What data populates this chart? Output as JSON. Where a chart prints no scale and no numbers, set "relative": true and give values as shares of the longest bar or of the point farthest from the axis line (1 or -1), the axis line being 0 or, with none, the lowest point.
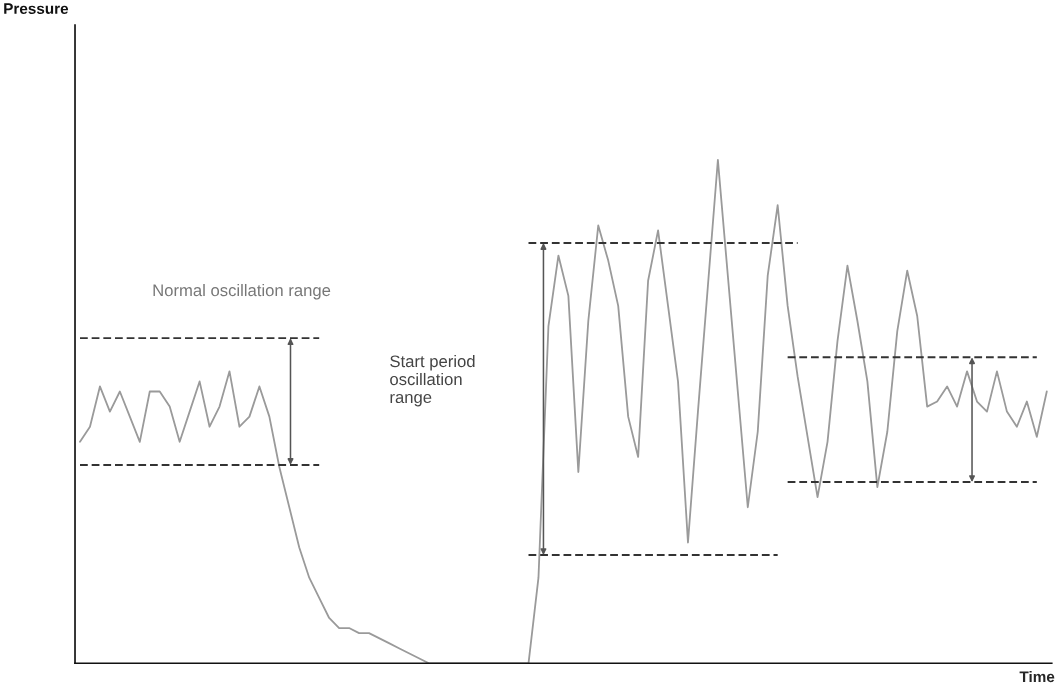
{
  "chart_data": {
    "type": "line",
    "relative": true,
    "xlabel": "Time",
    "annotations": [
      "Pressure",
      "Normal oscillation range",
      "Start period\noscillation\nrange"
    ],
    "categories": [
      null,
      null,
      null,
      null,
      null,
      null,
      null,
      null,
      null,
      null,
      null,
      null,
      null,
      null,
      null,
      null,
      null,
      null,
      null,
      null,
      null,
      null,
      null,
      null,
      null,
      null,
      null,
      null,
      null,
      null,
      null,
      null,
      null,
      null,
      null,
      null,
      null,
      null,
      null,
      null,
      null,
      null,
      null,
      null,
      null,
      null,
      null,
      null,
      null,
      null,
      null,
      null,
      null,
      null,
      null,
      null,
      null,
      null,
      null,
      null,
      null,
      null,
      null,
      null,
      null,
      null,
      null,
      null,
      null,
      null,
      null,
      null,
      null,
      null,
      null,
      null,
      null,
      null,
      null,
      null,
      null,
      null,
      null,
      null,
      null,
      null,
      null,
      null,
      null,
      null,
      null,
      null,
      null,
      null,
      null,
      null,
      null,
      null
    ],
    "series": [
      {
        "color": "#9a9a9a",
        "line_style": "solid",
        "values": [
          0.44,
          0.47,
          0.55,
          0.5,
          0.54,
          0.49,
          0.44,
          0.54,
          0.54,
          0.51,
          0.44,
          0.5,
          0.56,
          0.47,
          0.51,
          0.58,
          0.47,
          0.49,
          0.55,
          0.49,
          0.39,
          0.31,
          0.23,
          0.17,
          0.13,
          0.09,
          0.07,
          0.07,
          0.06,
          0.06,
          0.05,
          0.04,
          0.03,
          0.02,
          0.01,
          0,
          0,
          0,
          0,
          0,
          0,
          0,
          0,
          0,
          0,
          0,
          0.17,
          0.67,
          0.81,
          0.73,
          0.38,
          0.68,
          0.87,
          0.8,
          0.71,
          0.49,
          0.41,
          0.76,
          0.86,
          0.71,
          0.56,
          0.24,
          0.5,
          0.75,
          1.0,
          0.77,
          0.54,
          0.31,
          0.46,
          0.77,
          0.91,
          0.71,
          0.57,
          0.45,
          0.33,
          0.44,
          0.64,
          0.79,
          0.68,
          0.56,
          0.35,
          0.46,
          0.66,
          0.78,
          0.69,
          0.51,
          0.52,
          0.55,
          0.51,
          0.58,
          0.52,
          0.5,
          0.58,
          0.5,
          0.47,
          0.52,
          0.45,
          0.54
        ]
      },
      {
        "color": "#333333",
        "line_style": "dashed",
        "values": [
          0.646,
          0.646,
          0.646,
          0.646,
          0.646,
          0.646,
          0.646,
          0.646,
          0.646,
          0.646,
          0.646,
          0.646,
          0.646,
          0.646,
          0.646,
          0.646,
          0.646,
          0.646,
          0.646,
          0.646,
          0.646,
          0.646,
          0.646,
          0.646,
          0.646,
          null,
          null,
          null,
          null,
          null,
          null,
          null,
          null,
          null,
          null,
          null,
          null,
          null,
          null,
          null,
          null,
          null,
          null,
          null,
          null,
          null,
          null,
          null,
          null,
          null,
          null,
          null,
          null,
          null,
          null,
          null,
          null,
          null,
          null,
          null,
          null,
          null,
          null,
          null,
          null,
          null,
          null,
          null,
          null,
          null,
          null,
          null,
          null,
          null,
          null,
          null,
          null,
          null,
          null,
          null,
          null,
          null,
          null,
          null,
          null,
          null,
          null,
          null,
          null,
          null,
          null,
          null,
          null,
          null,
          null,
          null,
          null,
          null
        ]
      },
      {
        "color": "#333333",
        "line_style": "dashed",
        "values": [
          0.394,
          0.394,
          0.394,
          0.394,
          0.394,
          0.394,
          0.394,
          0.394,
          0.394,
          0.394,
          0.394,
          0.394,
          0.394,
          0.394,
          0.394,
          0.394,
          0.394,
          0.394,
          0.394,
          0.394,
          0.394,
          0.394,
          0.394,
          0.394,
          0.394,
          null,
          null,
          null,
          null,
          null,
          null,
          null,
          null,
          null,
          null,
          null,
          null,
          null,
          null,
          null,
          null,
          null,
          null,
          null,
          null,
          null,
          null,
          null,
          null,
          null,
          null,
          null,
          null,
          null,
          null,
          null,
          null,
          null,
          null,
          null,
          null,
          null,
          null,
          null,
          null,
          null,
          null,
          null,
          null,
          null,
          null,
          null,
          null,
          null,
          null,
          null,
          null,
          null,
          null,
          null,
          null,
          null,
          null,
          null,
          null,
          null,
          null,
          null,
          null,
          null,
          null,
          null,
          null,
          null,
          null,
          null,
          null,
          null
        ]
      },
      {
        "color": "#333333",
        "line_style": "dashed",
        "values": [
          null,
          null,
          null,
          null,
          null,
          null,
          null,
          null,
          null,
          null,
          null,
          null,
          null,
          null,
          null,
          null,
          null,
          null,
          null,
          null,
          null,
          null,
          null,
          null,
          null,
          null,
          null,
          null,
          null,
          null,
          null,
          null,
          null,
          null,
          null,
          null,
          null,
          null,
          null,
          null,
          null,
          null,
          null,
          null,
          null,
          0.835,
          0.835,
          0.835,
          0.835,
          0.835,
          0.835,
          0.835,
          0.835,
          0.835,
          0.835,
          0.835,
          0.835,
          0.835,
          0.835,
          0.835,
          0.835,
          0.835,
          0.835,
          0.835,
          0.835,
          0.835,
          0.835,
          0.835,
          0.835,
          0.835,
          0.835,
          0.835,
          0.835,
          null,
          null,
          null,
          null,
          null,
          null,
          null,
          null,
          null,
          null,
          null,
          null,
          null,
          null,
          null,
          null,
          null,
          null,
          null,
          null,
          null,
          null,
          null,
          null,
          null
        ]
      },
      {
        "color": "#333333",
        "line_style": "dashed",
        "values": [
          null,
          null,
          null,
          null,
          null,
          null,
          null,
          null,
          null,
          null,
          null,
          null,
          null,
          null,
          null,
          null,
          null,
          null,
          null,
          null,
          null,
          null,
          null,
          null,
          null,
          null,
          null,
          null,
          null,
          null,
          null,
          null,
          null,
          null,
          null,
          null,
          null,
          null,
          null,
          null,
          null,
          null,
          null,
          null,
          null,
          0.215,
          0.215,
          0.215,
          0.215,
          0.215,
          0.215,
          0.215,
          0.215,
          0.215,
          0.215,
          0.215,
          0.215,
          0.215,
          0.215,
          0.215,
          0.215,
          0.215,
          0.215,
          0.215,
          0.215,
          0.215,
          0.215,
          0.215,
          0.215,
          0.215,
          0.215,
          null,
          null,
          null,
          null,
          null,
          null,
          null,
          null,
          null,
          null,
          null,
          null,
          null,
          null,
          null,
          null,
          null,
          null,
          null,
          null,
          null,
          null,
          null,
          null,
          null,
          null,
          null
        ]
      },
      {
        "color": "#333333",
        "line_style": "dashed",
        "values": [
          null,
          null,
          null,
          null,
          null,
          null,
          null,
          null,
          null,
          null,
          null,
          null,
          null,
          null,
          null,
          null,
          null,
          null,
          null,
          null,
          null,
          null,
          null,
          null,
          null,
          null,
          null,
          null,
          null,
          null,
          null,
          null,
          null,
          null,
          null,
          null,
          null,
          null,
          null,
          null,
          null,
          null,
          null,
          null,
          null,
          null,
          null,
          null,
          null,
          null,
          null,
          null,
          null,
          null,
          null,
          null,
          null,
          null,
          null,
          null,
          null,
          null,
          null,
          null,
          null,
          null,
          null,
          null,
          null,
          null,
          null,
          0.608,
          0.608,
          0.608,
          0.608,
          0.608,
          0.608,
          0.608,
          0.608,
          0.608,
          0.608,
          0.608,
          0.608,
          0.608,
          0.608,
          0.608,
          0.608,
          0.608,
          0.608,
          0.608,
          0.608,
          0.608,
          0.608,
          0.608,
          0.608,
          0.608,
          0.608,
          null
        ]
      },
      {
        "color": "#333333",
        "line_style": "dashed",
        "values": [
          null,
          null,
          null,
          null,
          null,
          null,
          null,
          null,
          null,
          null,
          null,
          null,
          null,
          null,
          null,
          null,
          null,
          null,
          null,
          null,
          null,
          null,
          null,
          null,
          null,
          null,
          null,
          null,
          null,
          null,
          null,
          null,
          null,
          null,
          null,
          null,
          null,
          null,
          null,
          null,
          null,
          null,
          null,
          null,
          null,
          null,
          null,
          null,
          null,
          null,
          null,
          null,
          null,
          null,
          null,
          null,
          null,
          null,
          null,
          null,
          null,
          null,
          null,
          null,
          null,
          null,
          null,
          null,
          null,
          null,
          null,
          0.36,
          0.36,
          0.36,
          0.36,
          0.36,
          0.36,
          0.36,
          0.36,
          0.36,
          0.36,
          0.36,
          0.36,
          0.36,
          0.36,
          0.36,
          0.36,
          0.36,
          0.36,
          0.36,
          0.36,
          0.36,
          0.36,
          0.36,
          0.36,
          0.36,
          0.36,
          null
        ]
      }
    ]
  }
}
